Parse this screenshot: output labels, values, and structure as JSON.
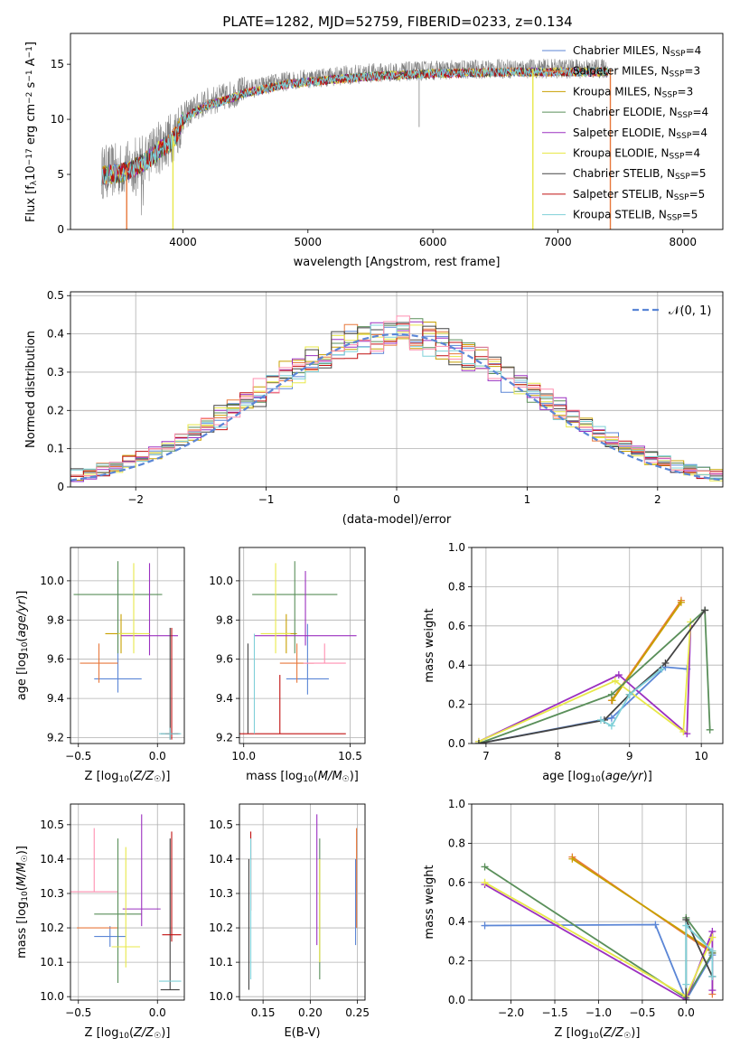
{
  "title": "PLATE=1282, MJD=52759, FIBERID=0233, z=0.134",
  "colors": {
    "Chabrier MILES": "#5b86d6",
    "Salpeter MILES": "#e8783c",
    "Kroupa MILES": "#c8a000",
    "Chabrier ELODIE": "#5a8f5a",
    "Salpeter ELODIE": "#9b30c0",
    "Kroupa ELODIE": "#e8e84a",
    "Chabrier STELIB": "#444444",
    "Salpeter STELIB": "#c01010",
    "Kroupa STELIB": "#7fd0d8",
    "Extra": "#ff8fb0",
    "data": "#808080"
  },
  "chart_data": [
    {
      "type": "line",
      "id": "spectrum",
      "xlabel": "wavelength [Angstrom, rest frame]",
      "ylabel": "Flux [fλ10⁻¹⁷ erg cm⁻² s⁻¹ A⁻¹]",
      "xlim": [
        3100,
        8320
      ],
      "ylim": [
        0,
        17.8
      ],
      "xticks": [
        4000,
        5000,
        6000,
        7000,
        8000
      ],
      "yticks": [
        0,
        5,
        10,
        15
      ],
      "grid": false,
      "legend_position": "top-right",
      "legend": [
        {
          "label": "Chabrier MILES, NSSP=4",
          "name": "Chabrier MILES",
          "n": "4"
        },
        {
          "label": "Salpeter MILES, NSSP=3",
          "name": "Salpeter MILES",
          "n": "3"
        },
        {
          "label": "Kroupa MILES, NSSP=3",
          "name": "Kroupa MILES",
          "n": "3"
        },
        {
          "label": "Chabrier ELODIE, NSSP=4",
          "name": "Chabrier ELODIE",
          "n": "4"
        },
        {
          "label": "Salpeter ELODIE, NSSP=4",
          "name": "Salpeter ELODIE",
          "n": "4"
        },
        {
          "label": "Kroupa ELODIE, NSSP=4",
          "name": "Kroupa ELODIE",
          "n": "4"
        },
        {
          "label": "Chabrier STELIB, NSSP=5",
          "name": "Chabrier STELIB",
          "n": "5"
        },
        {
          "label": "Salpeter STELIB, NSSP=5",
          "name": "Salpeter STELIB",
          "n": "5"
        },
        {
          "label": "Kroupa STELIB, NSSP=5",
          "name": "Kroupa STELIB",
          "n": "5"
        }
      ],
      "continuum": [
        [
          3350,
          5.2
        ],
        [
          3500,
          5.4
        ],
        [
          3600,
          5.8
        ],
        [
          3700,
          6.5
        ],
        [
          3800,
          7.4
        ],
        [
          3900,
          8.2
        ],
        [
          3950,
          9.0
        ],
        [
          4000,
          10.2
        ],
        [
          4100,
          11.0
        ],
        [
          4200,
          11.6
        ],
        [
          4300,
          11.9
        ],
        [
          4400,
          12.3
        ],
        [
          4500,
          12.7
        ],
        [
          4600,
          12.9
        ],
        [
          4700,
          13.2
        ],
        [
          4800,
          13.4
        ],
        [
          4900,
          13.6
        ],
        [
          5000,
          13.7
        ],
        [
          5100,
          13.8
        ],
        [
          5200,
          13.9
        ],
        [
          5300,
          14.0
        ],
        [
          5400,
          14.1
        ],
        [
          5500,
          14.2
        ],
        [
          5600,
          14.25
        ],
        [
          5700,
          14.3
        ],
        [
          5800,
          14.35
        ],
        [
          5900,
          14.4
        ],
        [
          6000,
          14.45
        ],
        [
          6200,
          14.5
        ],
        [
          6400,
          14.55
        ],
        [
          6600,
          14.6
        ],
        [
          6800,
          14.6
        ],
        [
          7000,
          14.6
        ],
        [
          7200,
          14.6
        ],
        [
          7400,
          14.6
        ]
      ],
      "model_cutoffs": [
        {
          "series": "Salpeter MILES",
          "edges": [
            3550,
            7420
          ]
        },
        {
          "series": "Kroupa ELODIE",
          "edges": [
            3920,
            6800
          ]
        }
      ]
    },
    {
      "type": "histogram",
      "id": "residuals",
      "xlabel": "(data-model)/error",
      "ylabel": "Normed distribution",
      "xlim": [
        -2.5,
        2.5
      ],
      "ylim": [
        0,
        0.51
      ],
      "xticks": [
        -2,
        -1,
        0,
        1,
        2
      ],
      "yticks": [
        0.0,
        0.1,
        0.2,
        0.3,
        0.4,
        0.5
      ],
      "grid": true,
      "legend": [
        {
          "label": "𝒩(0,1)",
          "style": "dashed"
        }
      ],
      "legend_position": "top-right",
      "bin_width": 0.1
    },
    {
      "type": "scatter",
      "id": "age_vs_Z",
      "xlabel": "Z [log10(Z/Z☉)]",
      "ylabel": "age  [log10(age/yr)]",
      "xlim": [
        -0.55,
        0.17
      ],
      "ylim": [
        9.17,
        10.17
      ],
      "xticks": [
        -0.5,
        0.0
      ],
      "yticks": [
        9.2,
        9.4,
        9.6,
        9.8,
        10.0
      ],
      "grid": true,
      "points": [
        {
          "series": "Chabrier MILES",
          "x": -0.25,
          "y": 9.5,
          "xerr": 0.15,
          "yerr": [
            0.07,
            0.51
          ]
        },
        {
          "series": "Salpeter MILES",
          "x": -0.37,
          "y": 9.58,
          "xerr": 0.12,
          "yerr": [
            0.1,
            0.1
          ]
        },
        {
          "series": "Kroupa MILES",
          "x": -0.23,
          "y": 9.73,
          "xerr": 0.1,
          "yerr": [
            0.1,
            0.1
          ]
        },
        {
          "series": "Chabrier ELODIE",
          "x": -0.25,
          "y": 9.93,
          "xerr": 0.28,
          "yerr": [
            0.3,
            0.17
          ]
        },
        {
          "series": "Salpeter ELODIE",
          "x": -0.05,
          "y": 9.72,
          "xerr": 0.18,
          "yerr": [
            0.1,
            0.37
          ]
        },
        {
          "series": "Kroupa ELODIE",
          "x": -0.15,
          "y": 9.73,
          "xerr": 0.1,
          "yerr": [
            0.1,
            0.36
          ]
        },
        {
          "series": "Chabrier STELIB",
          "x": 0.08,
          "y": 9.22,
          "xerr": 0.06,
          "yerr": [
            0.03,
            0.54
          ]
        },
        {
          "series": "Salpeter STELIB",
          "x": 0.09,
          "y": 9.22,
          "xerr": 0.04,
          "yerr": [
            0.03,
            0.54
          ]
        },
        {
          "series": "Kroupa STELIB",
          "x": 0.08,
          "y": 9.22,
          "xerr": 0.07,
          "yerr": [
            0.03,
            0.03
          ]
        }
      ]
    },
    {
      "type": "scatter",
      "id": "age_vs_mass",
      "xlabel": "mass [log10(M/M☉)]",
      "ylabel": "",
      "xlim": [
        9.98,
        10.57
      ],
      "ylim": [
        9.17,
        10.17
      ],
      "xticks": [
        10.0,
        10.5
      ],
      "yticks": [
        9.2,
        9.4,
        9.6,
        9.8,
        10.0
      ],
      "grid": true,
      "points": [
        {
          "series": "Chabrier MILES",
          "x": 10.3,
          "y": 9.5,
          "xerr": 0.1,
          "yerr": [
            0.08,
            0.28
          ]
        },
        {
          "series": "Salpeter MILES",
          "x": 10.25,
          "y": 9.58,
          "xerr": 0.08,
          "yerr": [
            0.1,
            0.1
          ]
        },
        {
          "series": "Kroupa MILES",
          "x": 10.2,
          "y": 9.73,
          "xerr": 0.05,
          "yerr": [
            0.1,
            0.1
          ]
        },
        {
          "series": "Chabrier ELODIE",
          "x": 10.24,
          "y": 9.93,
          "xerr": 0.2,
          "yerr": [
            0.3,
            0.17
          ]
        },
        {
          "series": "Salpeter ELODIE",
          "x": 10.29,
          "y": 9.72,
          "xerr": 0.24,
          "yerr": [
            0.05,
            0.33
          ]
        },
        {
          "series": "Kroupa ELODIE",
          "x": 10.15,
          "y": 9.73,
          "xerr": 0.07,
          "yerr": [
            0.1,
            0.36
          ]
        },
        {
          "series": "Chabrier STELIB",
          "x": 10.02,
          "y": 9.22,
          "xerr": 0.0,
          "yerr": [
            0.0,
            0.46
          ]
        },
        {
          "series": "Salpeter STELIB",
          "x": 10.17,
          "y": 9.22,
          "xerr": 0.31,
          "yerr": [
            0.0,
            0.3
          ]
        },
        {
          "series": "Kroupa STELIB",
          "x": 10.05,
          "y": 9.22,
          "xerr": 0.0,
          "yerr": [
            0.0,
            0.51
          ]
        },
        {
          "series": "Extra",
          "x": 10.38,
          "y": 9.58,
          "xerr": 0.1,
          "yerr": [
            0.0,
            0.1
          ]
        }
      ]
    },
    {
      "type": "line",
      "id": "massweight_vs_age",
      "xlabel": "age  [log10(age/yr)]",
      "ylabel": "mass weight",
      "xlim": [
        6.8,
        10.3
      ],
      "ylim": [
        0,
        1.0
      ],
      "xticks": [
        7,
        8,
        9,
        10
      ],
      "yticks": [
        0.0,
        0.2,
        0.4,
        0.6,
        0.8,
        1.0
      ],
      "grid": true,
      "series": [
        {
          "name": "Salpeter MILES",
          "x": [
            8.75,
            9.72
          ],
          "y": [
            0.22,
            0.73
          ]
        },
        {
          "name": "Kroupa MILES",
          "x": [
            8.76,
            9.72
          ],
          "y": [
            0.22,
            0.72
          ]
        },
        {
          "name": "Chabrier MILES",
          "x": [
            6.9,
            8.75,
            9.5,
            9.8
          ],
          "y": [
            0.0,
            0.13,
            0.39,
            0.38
          ]
        },
        {
          "name": "Salpeter ELODIE",
          "x": [
            6.9,
            8.85,
            9.8,
            9.85
          ],
          "y": [
            0.01,
            0.35,
            0.05,
            0.6
          ]
        },
        {
          "name": "Kroupa ELODIE",
          "x": [
            6.9,
            8.8,
            9.75,
            9.85
          ],
          "y": [
            0.01,
            0.32,
            0.06,
            0.62
          ]
        },
        {
          "name": "Chabrier ELODIE",
          "x": [
            6.9,
            8.75,
            10.05,
            10.12
          ],
          "y": [
            0.0,
            0.25,
            0.68,
            0.07
          ]
        },
        {
          "name": "Chabrier STELIB",
          "x": [
            6.9,
            8.65,
            9.0,
            9.5,
            10.05
          ],
          "y": [
            0.0,
            0.12,
            0.25,
            0.41,
            0.68
          ]
        },
        {
          "name": "Kroupa STELIB",
          "x": [
            8.6,
            8.75,
            9.0,
            9.45
          ],
          "y": [
            0.12,
            0.09,
            0.25,
            0.38
          ]
        }
      ]
    },
    {
      "type": "scatter",
      "id": "mass_vs_Z",
      "xlabel": "Z [log10(Z/Z☉)]",
      "ylabel": "mass [log10(M/M☉)]",
      "xlim": [
        -0.55,
        0.17
      ],
      "ylim": [
        9.99,
        10.56
      ],
      "xticks": [
        -0.5,
        0.0
      ],
      "yticks": [
        10.0,
        10.1,
        10.2,
        10.3,
        10.4,
        10.5
      ],
      "grid": true,
      "points": [
        {
          "series": "Chabrier MILES",
          "x": -0.3,
          "y": 10.175,
          "xerr": 0.1,
          "yerr": [
            0.03,
            0.03
          ]
        },
        {
          "series": "Salpeter MILES",
          "x": -0.38,
          "y": 10.2,
          "xerr": 0.13,
          "yerr": [
            0.0,
            0.0
          ]
        },
        {
          "series": "Extra",
          "x": -0.4,
          "y": 10.305,
          "xerr": 0.15,
          "yerr": [
            0.0,
            0.185
          ]
        },
        {
          "series": "Chabrier ELODIE",
          "x": -0.25,
          "y": 10.24,
          "xerr": 0.15,
          "yerr": [
            0.2,
            0.22
          ]
        },
        {
          "series": "Salpeter ELODIE",
          "x": -0.1,
          "y": 10.255,
          "xerr": 0.12,
          "yerr": [
            0.05,
            0.275
          ]
        },
        {
          "series": "Kroupa ELODIE",
          "x": -0.2,
          "y": 10.145,
          "xerr": 0.09,
          "yerr": [
            0.06,
            0.29
          ]
        },
        {
          "series": "Chabrier STELIB",
          "x": 0.08,
          "y": 10.02,
          "xerr": 0.06,
          "yerr": [
            0.0,
            0.44
          ]
        },
        {
          "series": "Salpeter STELIB",
          "x": 0.09,
          "y": 10.18,
          "xerr": 0.06,
          "yerr": [
            0.02,
            0.3
          ]
        },
        {
          "series": "Kroupa STELIB",
          "x": 0.08,
          "y": 10.045,
          "xerr": 0.07,
          "yerr": [
            0.0,
            0.0
          ]
        }
      ]
    },
    {
      "type": "scatter",
      "id": "mass_vs_EBV",
      "xlabel": "E(B-V)",
      "ylabel": "",
      "xlim": [
        0.125,
        0.258
      ],
      "ylim": [
        9.99,
        10.56
      ],
      "xticks": [
        0.15,
        0.2,
        0.25
      ],
      "yticks": [
        10.0,
        10.1,
        10.2,
        10.3,
        10.4,
        10.5
      ],
      "grid": true,
      "points": [
        {
          "series": "Chabrier STELIB",
          "x": 0.135,
          "y": 10.2,
          "yerr": [
            0.18,
            0.2
          ]
        },
        {
          "series": "Salpeter STELIB",
          "x": 0.137,
          "y": 10.3,
          "yerr": [
            0.05,
            0.18
          ]
        },
        {
          "series": "Kroupa STELIB",
          "x": 0.137,
          "y": 10.25,
          "yerr": [
            0.2,
            0.21
          ]
        },
        {
          "series": "Salpeter ELODIE",
          "x": 0.207,
          "y": 10.3,
          "yerr": [
            0.15,
            0.23
          ]
        },
        {
          "series": "Chabrier ELODIE",
          "x": 0.21,
          "y": 10.25,
          "yerr": [
            0.2,
            0.21
          ]
        },
        {
          "series": "Kroupa ELODIE",
          "x": 0.21,
          "y": 10.2,
          "yerr": [
            0.1,
            0.2
          ]
        },
        {
          "series": "Salpeter MILES",
          "x": 0.249,
          "y": 10.3,
          "yerr": [
            0.1,
            0.19
          ]
        },
        {
          "series": "Chabrier MILES",
          "x": 0.248,
          "y": 10.3,
          "yerr": [
            0.15,
            0.1
          ]
        }
      ]
    },
    {
      "type": "line",
      "id": "massweight_vs_Z",
      "xlabel": "Z [log10(Z/Z☉)]",
      "ylabel": "mass weight",
      "xlim": [
        -2.45,
        0.42
      ],
      "ylim": [
        0,
        1.0
      ],
      "xticks": [
        -2.0,
        -1.5,
        -1.0,
        -0.5,
        0.0
      ],
      "yticks": [
        0.0,
        0.2,
        0.4,
        0.6,
        0.8,
        1.0
      ],
      "grid": true,
      "series": [
        {
          "name": "Chabrier MILES",
          "x": [
            -2.3,
            -0.35,
            0.0,
            0.3
          ],
          "y": [
            0.38,
            0.385,
            0.0,
            0.23
          ]
        },
        {
          "name": "Salpeter MILES",
          "x": [
            -1.3,
            0.3,
            0.3
          ],
          "y": [
            0.73,
            0.24,
            0.03
          ]
        },
        {
          "name": "Kroupa MILES",
          "x": [
            -1.3,
            0.3
          ],
          "y": [
            0.72,
            0.25
          ]
        },
        {
          "name": "Chabrier ELODIE",
          "x": [
            -2.3,
            0.0,
            0.3,
            0.0
          ],
          "y": [
            0.68,
            0.01,
            0.24,
            0.42
          ]
        },
        {
          "name": "Salpeter ELODIE",
          "x": [
            -2.3,
            0.0,
            0.3,
            0.3
          ],
          "y": [
            0.59,
            0.0,
            0.35,
            0.05
          ]
        },
        {
          "name": "Kroupa ELODIE",
          "x": [
            -2.3,
            0.0,
            0.3
          ],
          "y": [
            0.6,
            0.02,
            0.32
          ]
        },
        {
          "name": "Chabrier STELIB",
          "x": [
            0.0,
            0.0,
            0.3
          ],
          "y": [
            0.0,
            0.41,
            0.12
          ]
        },
        {
          "name": "Kroupa STELIB",
          "x": [
            0.0,
            0.0,
            0.3,
            0.3
          ],
          "y": [
            0.08,
            0.38,
            0.25,
            0.12
          ]
        }
      ]
    }
  ]
}
